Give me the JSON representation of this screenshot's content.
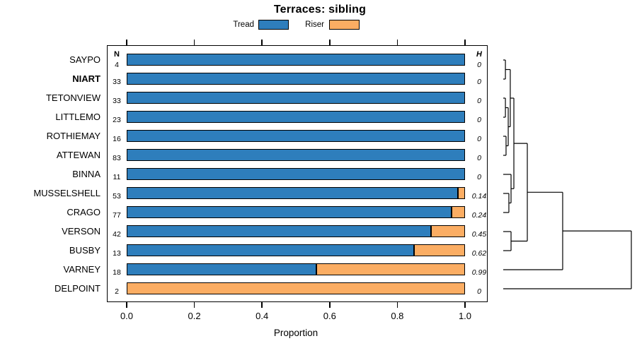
{
  "title": "Terraces: sibling",
  "legend": {
    "items": [
      {
        "label": "Tread",
        "color": "#2E7EBC"
      },
      {
        "label": "Riser",
        "color": "#FBAD63"
      }
    ]
  },
  "columns": {
    "n_header": "N",
    "h_header": "H"
  },
  "colors": {
    "tread": "#2E7EBC",
    "riser": "#FBAD63",
    "line": "#000000"
  },
  "chart_data": {
    "type": "bar",
    "stacked": true,
    "orientation": "horizontal",
    "title": "Terraces: sibling",
    "xlabel": "Proportion",
    "xlim": [
      0,
      1
    ],
    "x_ticks": [
      "0.0",
      "0.2",
      "0.4",
      "0.6",
      "0.8",
      "1.0"
    ],
    "series_names": [
      "Tread",
      "Riser"
    ],
    "rows": [
      {
        "label": "SAYPO",
        "bold": false,
        "n": "4",
        "h": "0",
        "tread": 1.0,
        "riser": 0.0
      },
      {
        "label": "NIART",
        "bold": true,
        "n": "33",
        "h": "0",
        "tread": 1.0,
        "riser": 0.0
      },
      {
        "label": "TETONVIEW",
        "bold": false,
        "n": "33",
        "h": "0",
        "tread": 1.0,
        "riser": 0.0
      },
      {
        "label": "LITTLEMO",
        "bold": false,
        "n": "23",
        "h": "0",
        "tread": 1.0,
        "riser": 0.0
      },
      {
        "label": "ROTHIEMAY",
        "bold": false,
        "n": "16",
        "h": "0",
        "tread": 1.0,
        "riser": 0.0
      },
      {
        "label": "ATTEWAN",
        "bold": false,
        "n": "83",
        "h": "0",
        "tread": 1.0,
        "riser": 0.0
      },
      {
        "label": "BINNA",
        "bold": false,
        "n": "11",
        "h": "0",
        "tread": 1.0,
        "riser": 0.0
      },
      {
        "label": "MUSSELSHELL",
        "bold": false,
        "n": "53",
        "h": "0.14",
        "tread": 0.98,
        "riser": 0.02
      },
      {
        "label": "CRAGO",
        "bold": false,
        "n": "77",
        "h": "0.24",
        "tread": 0.96,
        "riser": 0.04
      },
      {
        "label": "VERSON",
        "bold": false,
        "n": "42",
        "h": "0.45",
        "tread": 0.9,
        "riser": 0.1
      },
      {
        "label": "BUSBY",
        "bold": false,
        "n": "13",
        "h": "0.62",
        "tread": 0.85,
        "riser": 0.15
      },
      {
        "label": "VARNEY",
        "bold": false,
        "n": "18",
        "h": "0.99",
        "tread": 0.56,
        "riser": 0.44
      },
      {
        "label": "DELPOINT",
        "bold": false,
        "n": "2",
        "h": "0",
        "tread": 0.0,
        "riser": 1.0
      }
    ],
    "dendrogram": {
      "note": "leaves are row indices 0-12 top to bottom; mK refers to merge K; rel_height is merge height relative to the final merge = 1.0",
      "merges": [
        {
          "id": "m0",
          "a": 0,
          "b": 1,
          "rel_height": 0.017
        },
        {
          "id": "m1",
          "a": 2,
          "b": 3,
          "rel_height": 0.017
        },
        {
          "id": "m2",
          "a": 4,
          "b": 5,
          "rel_height": 0.022
        },
        {
          "id": "m3",
          "a": "m1",
          "b": "m2",
          "rel_height": 0.039
        },
        {
          "id": "m4",
          "a": "m0",
          "b": "m3",
          "rel_height": 0.055
        },
        {
          "id": "m5",
          "a": 7,
          "b": 8,
          "rel_height": 0.044
        },
        {
          "id": "m6",
          "a": 6,
          "b": "m5",
          "rel_height": 0.061
        },
        {
          "id": "m7",
          "a": "m4",
          "b": "m6",
          "rel_height": 0.083
        },
        {
          "id": "m8",
          "a": 9,
          "b": 10,
          "rel_height": 0.061
        },
        {
          "id": "m9",
          "a": "m7",
          "b": "m8",
          "rel_height": 0.188
        },
        {
          "id": "m10",
          "a": "m9",
          "b": 11,
          "rel_height": 0.464
        },
        {
          "id": "m11",
          "a": "m10",
          "b": 12,
          "rel_height": 1.0
        }
      ]
    }
  }
}
